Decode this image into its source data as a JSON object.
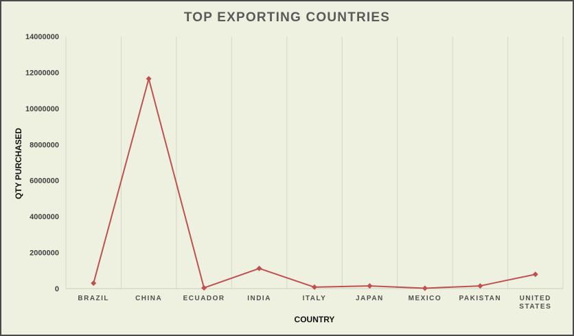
{
  "chart_data": {
    "type": "line",
    "title": "TOP EXPORTING COUNTRIES",
    "xlabel": "COUNTRY",
    "ylabel": "QTY PURCHASED",
    "categories": [
      "BRAZIL",
      "CHINA",
      "ECUADOR",
      "INDIA",
      "ITALY",
      "JAPAN",
      "MEXICO",
      "PAKISTAN",
      "UNITED STATES"
    ],
    "category_lines": [
      [
        "BRAZIL"
      ],
      [
        "CHINA"
      ],
      [
        "ECUADOR"
      ],
      [
        "INDIA"
      ],
      [
        "ITALY"
      ],
      [
        "JAPAN"
      ],
      [
        "MEXICO"
      ],
      [
        "PAKISTAN"
      ],
      [
        "UNITED",
        "STATES"
      ]
    ],
    "series": [
      {
        "values": [
          300000,
          11650000,
          40000,
          1120000,
          80000,
          150000,
          20000,
          150000,
          790000
        ],
        "color": "#c0504d"
      }
    ],
    "ylim": [
      0,
      14000000
    ],
    "yticks": [
      "0",
      "2000000",
      "4000000",
      "6000000",
      "8000000",
      "10000000",
      "12000000",
      "14000000"
    ],
    "grid": "vertical",
    "legend": "none"
  }
}
